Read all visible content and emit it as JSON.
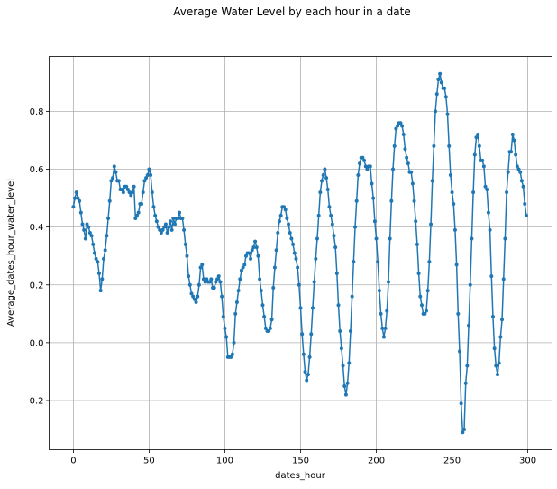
{
  "chart_data": {
    "type": "line",
    "title": "Average Water Level by each hour in a date",
    "xlabel": "dates_hour",
    "ylabel": "Average_dates_hour_water_level",
    "xlim": [
      -16,
      316
    ],
    "ylim": [
      -0.37,
      0.99
    ],
    "x_ticks": [
      0,
      50,
      100,
      150,
      200,
      250,
      300
    ],
    "y_ticks": [
      -0.2,
      0.0,
      0.2,
      0.4,
      0.6,
      0.8
    ],
    "y_tick_labels": [
      "−0.2",
      "0.0",
      "0.2",
      "0.4",
      "0.6",
      "0.8"
    ],
    "grid": true,
    "line_color": "#1f77b4",
    "marker": "dot",
    "series": [
      {
        "name": "",
        "x": [
          0,
          1,
          2,
          3,
          4,
          5,
          6,
          7,
          8,
          9,
          10,
          11,
          12,
          13,
          14,
          15,
          16,
          17,
          18,
          19,
          20,
          21,
          22,
          23,
          24,
          25,
          26,
          27,
          28,
          29,
          30,
          31,
          32,
          33,
          34,
          35,
          36,
          37,
          38,
          39,
          40,
          41,
          42,
          43,
          44,
          45,
          46,
          47,
          48,
          49,
          50,
          51,
          52,
          53,
          54,
          55,
          56,
          57,
          58,
          59,
          60,
          61,
          62,
          63,
          64,
          65,
          66,
          67,
          68,
          69,
          70,
          71,
          72,
          73,
          74,
          75,
          76,
          77,
          78,
          79,
          80,
          81,
          82,
          83,
          84,
          85,
          86,
          87,
          88,
          89,
          90,
          91,
          92,
          93,
          94,
          95,
          96,
          97,
          98,
          99,
          100,
          101,
          102,
          103,
          104,
          105,
          106,
          107,
          108,
          109,
          110,
          111,
          112,
          113,
          114,
          115,
          116,
          117,
          118,
          119,
          120,
          121,
          122,
          123,
          124,
          125,
          126,
          127,
          128,
          129,
          130,
          131,
          132,
          133,
          134,
          135,
          136,
          137,
          138,
          139,
          140,
          141,
          142,
          143,
          144,
          145,
          146,
          147,
          148,
          149,
          150,
          151,
          152,
          153,
          154,
          155,
          156,
          157,
          158,
          159,
          160,
          161,
          162,
          163,
          164,
          165,
          166,
          167,
          168,
          169,
          170,
          171,
          172,
          173,
          174,
          175,
          176,
          177,
          178,
          179,
          180,
          181,
          182,
          183,
          184,
          185,
          186,
          187,
          188,
          189,
          190,
          191,
          192,
          193,
          194,
          195,
          196,
          197,
          198,
          199,
          200,
          201,
          202,
          203,
          204,
          205,
          206,
          207,
          208,
          209,
          210,
          211,
          212,
          213,
          214,
          215,
          216,
          217,
          218,
          219,
          220,
          221,
          222,
          223,
          224,
          225,
          226,
          227,
          228,
          229,
          230,
          231,
          232,
          233,
          234,
          235,
          236,
          237,
          238,
          239,
          240,
          241,
          242,
          243,
          244,
          245,
          246,
          247,
          248,
          249,
          250,
          251,
          252,
          253,
          254,
          255,
          256,
          257,
          258,
          259,
          260,
          261,
          262,
          263,
          264,
          265,
          266,
          267,
          268,
          269,
          270,
          271,
          272,
          273,
          274,
          275,
          276,
          277,
          278,
          279,
          280,
          281,
          282,
          283,
          284,
          285,
          286,
          287,
          288,
          289,
          290,
          291,
          292,
          293,
          294,
          295,
          296,
          297,
          298,
          299
        ],
        "y": [
          0.47,
          0.5,
          0.52,
          0.5,
          0.49,
          0.45,
          0.41,
          0.39,
          0.36,
          0.41,
          0.4,
          0.38,
          0.37,
          0.34,
          0.31,
          0.29,
          0.28,
          0.24,
          0.18,
          0.22,
          0.29,
          0.32,
          0.37,
          0.43,
          0.49,
          0.56,
          0.57,
          0.61,
          0.59,
          0.56,
          0.56,
          0.53,
          0.53,
          0.52,
          0.54,
          0.54,
          0.53,
          0.52,
          0.51,
          0.52,
          0.54,
          0.43,
          0.44,
          0.45,
          0.48,
          0.48,
          0.52,
          0.56,
          0.57,
          0.58,
          0.6,
          0.58,
          0.52,
          0.47,
          0.44,
          0.42,
          0.4,
          0.39,
          0.38,
          0.39,
          0.4,
          0.41,
          0.38,
          0.4,
          0.42,
          0.39,
          0.43,
          0.41,
          0.43,
          0.43,
          0.45,
          0.43,
          0.43,
          0.39,
          0.34,
          0.3,
          0.23,
          0.2,
          0.17,
          0.16,
          0.15,
          0.14,
          0.16,
          0.2,
          0.26,
          0.27,
          0.22,
          0.21,
          0.22,
          0.21,
          0.21,
          0.22,
          0.19,
          0.19,
          0.21,
          0.22,
          0.23,
          0.21,
          0.16,
          0.09,
          0.05,
          0.02,
          -0.05,
          -0.05,
          -0.05,
          -0.04,
          0.0,
          0.1,
          0.14,
          0.18,
          0.22,
          0.25,
          0.26,
          0.27,
          0.3,
          0.31,
          0.31,
          0.29,
          0.32,
          0.33,
          0.35,
          0.33,
          0.3,
          0.22,
          0.18,
          0.13,
          0.09,
          0.05,
          0.04,
          0.04,
          0.05,
          0.08,
          0.19,
          0.26,
          0.32,
          0.38,
          0.42,
          0.44,
          0.47,
          0.47,
          0.46,
          0.43,
          0.41,
          0.38,
          0.36,
          0.34,
          0.31,
          0.29,
          0.26,
          0.2,
          0.12,
          0.03,
          -0.04,
          -0.1,
          -0.13,
          -0.11,
          -0.05,
          0.03,
          0.12,
          0.21,
          0.29,
          0.36,
          0.44,
          0.52,
          0.56,
          0.58,
          0.6,
          0.57,
          0.53,
          0.47,
          0.44,
          0.41,
          0.37,
          0.33,
          0.24,
          0.13,
          0.04,
          -0.02,
          -0.08,
          -0.15,
          -0.18,
          -0.14,
          -0.07,
          0.04,
          0.16,
          0.28,
          0.4,
          0.49,
          0.58,
          0.62,
          0.64,
          0.64,
          0.63,
          0.61,
          0.6,
          0.61,
          0.61,
          0.55,
          0.5,
          0.42,
          0.36,
          0.28,
          0.18,
          0.1,
          0.05,
          0.02,
          0.05,
          0.11,
          0.21,
          0.36,
          0.49,
          0.6,
          0.68,
          0.74,
          0.75,
          0.76,
          0.76,
          0.75,
          0.72,
          0.67,
          0.64,
          0.62,
          0.59,
          0.59,
          0.55,
          0.49,
          0.42,
          0.34,
          0.24,
          0.16,
          0.13,
          0.1,
          0.1,
          0.11,
          0.18,
          0.28,
          0.41,
          0.56,
          0.68,
          0.8,
          0.86,
          0.91,
          0.93,
          0.9,
          0.88,
          0.88,
          0.85,
          0.79,
          0.68,
          0.58,
          0.52,
          0.48,
          0.39,
          0.27,
          0.1,
          -0.03,
          -0.21,
          -0.31,
          -0.3,
          -0.14,
          -0.08,
          0.06,
          0.2,
          0.36,
          0.52,
          0.65,
          0.71,
          0.72,
          0.68,
          0.63,
          0.63,
          0.61,
          0.54,
          0.53,
          0.45,
          0.39,
          0.23,
          0.09,
          -0.02,
          -0.08,
          -0.11,
          -0.07,
          0.02,
          0.08,
          0.22,
          0.36,
          0.52,
          0.59,
          0.66,
          0.66,
          0.72,
          0.7,
          0.65,
          0.61,
          0.6,
          0.59,
          0.56,
          0.54,
          0.48,
          0.44
        ]
      }
    ]
  }
}
